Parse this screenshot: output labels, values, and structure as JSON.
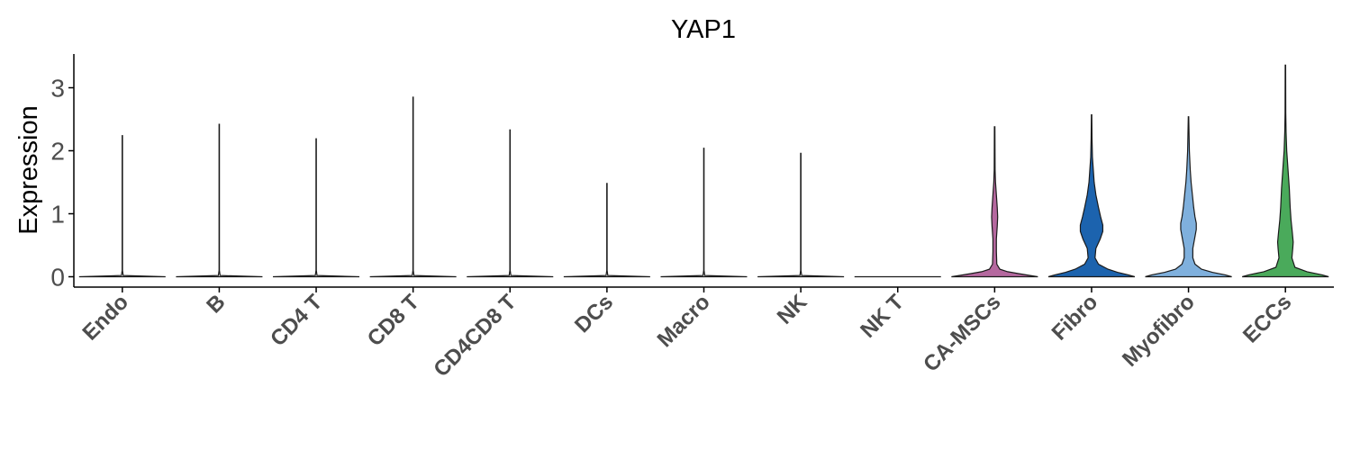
{
  "chart_data": {
    "type": "violin",
    "title": "YAP1",
    "xlabel": "",
    "ylabel": "Expression",
    "ylim": [
      -0.15,
      3.55
    ],
    "yticks": [
      0,
      1,
      2,
      3
    ],
    "grid": false,
    "legend": "none",
    "categories": [
      "Endo",
      "B",
      "CD4 T",
      "CD8 T",
      "CD4CD8 T",
      "DCs",
      "Macro",
      "NK",
      "NK T",
      "CA-MSCs",
      "Fibro",
      "Myofibro",
      "ECCs"
    ],
    "colors": [
      "#ffffff",
      "#ffffff",
      "#ffffff",
      "#ffffff",
      "#ffffff",
      "#ffffff",
      "#ffffff",
      "#ffffff",
      "#ffffff",
      "#b5689f",
      "#1c63ae",
      "#7fb0dd",
      "#4aaa5b"
    ],
    "series": [
      {
        "category": "Endo",
        "max": 2.24,
        "density": [
          [
            0,
            1
          ],
          [
            0.02,
            0.02
          ],
          [
            0.1,
            0.004
          ],
          [
            2.24,
            0.004
          ]
        ]
      },
      {
        "category": "B",
        "max": 2.42,
        "density": [
          [
            0,
            1
          ],
          [
            0.02,
            0.02
          ],
          [
            0.1,
            0.004
          ],
          [
            2.42,
            0.004
          ]
        ]
      },
      {
        "category": "CD4 T",
        "max": 2.19,
        "density": [
          [
            0,
            1
          ],
          [
            0.02,
            0.02
          ],
          [
            0.1,
            0.004
          ],
          [
            2.19,
            0.004
          ]
        ]
      },
      {
        "category": "CD8 T",
        "max": 2.85,
        "density": [
          [
            0,
            1
          ],
          [
            0.02,
            0.02
          ],
          [
            0.1,
            0.004
          ],
          [
            2.85,
            0.004
          ]
        ]
      },
      {
        "category": "CD4CD8 T",
        "max": 2.33,
        "density": [
          [
            0,
            1
          ],
          [
            0.02,
            0.02
          ],
          [
            0.1,
            0.004
          ],
          [
            2.33,
            0.004
          ]
        ]
      },
      {
        "category": "DCs",
        "max": 1.48,
        "density": [
          [
            0,
            1
          ],
          [
            0.02,
            0.02
          ],
          [
            0.1,
            0.004
          ],
          [
            1.48,
            0.004
          ]
        ]
      },
      {
        "category": "Macro",
        "max": 2.04,
        "density": [
          [
            0,
            1
          ],
          [
            0.02,
            0.02
          ],
          [
            0.1,
            0.004
          ],
          [
            2.04,
            0.004
          ]
        ]
      },
      {
        "category": "NK",
        "max": 1.96,
        "density": [
          [
            0,
            1
          ],
          [
            0.02,
            0.02
          ],
          [
            0.1,
            0.004
          ],
          [
            1.96,
            0.004
          ]
        ]
      },
      {
        "category": "NK T",
        "max": 0.0,
        "density": [
          [
            0,
            1
          ]
        ]
      },
      {
        "category": "CA-MSCs",
        "max": 2.38,
        "density": [
          [
            0,
            1
          ],
          [
            0.02,
            0.82
          ],
          [
            0.05,
            0.55
          ],
          [
            0.08,
            0.3
          ],
          [
            0.12,
            0.12
          ],
          [
            0.2,
            0.05
          ],
          [
            0.4,
            0.04
          ],
          [
            0.6,
            0.04
          ],
          [
            0.8,
            0.06
          ],
          [
            0.95,
            0.07
          ],
          [
            1.1,
            0.06
          ],
          [
            1.3,
            0.04
          ],
          [
            1.5,
            0.02
          ],
          [
            1.7,
            0.01
          ],
          [
            2.38,
            0.006
          ]
        ]
      },
      {
        "category": "Fibro",
        "max": 2.57,
        "density": [
          [
            0,
            1
          ],
          [
            0.03,
            0.85
          ],
          [
            0.07,
            0.6
          ],
          [
            0.12,
            0.38
          ],
          [
            0.2,
            0.16
          ],
          [
            0.3,
            0.08
          ],
          [
            0.45,
            0.1
          ],
          [
            0.6,
            0.2
          ],
          [
            0.72,
            0.26
          ],
          [
            0.82,
            0.26
          ],
          [
            0.95,
            0.21
          ],
          [
            1.1,
            0.16
          ],
          [
            1.3,
            0.1
          ],
          [
            1.5,
            0.06
          ],
          [
            1.7,
            0.04
          ],
          [
            1.9,
            0.02
          ],
          [
            2.2,
            0.01
          ],
          [
            2.57,
            0.005
          ]
        ]
      },
      {
        "category": "Myofibro",
        "max": 2.54,
        "density": [
          [
            0,
            1
          ],
          [
            0.03,
            0.85
          ],
          [
            0.07,
            0.55
          ],
          [
            0.12,
            0.3
          ],
          [
            0.2,
            0.15
          ],
          [
            0.3,
            0.1
          ],
          [
            0.45,
            0.1
          ],
          [
            0.6,
            0.14
          ],
          [
            0.75,
            0.18
          ],
          [
            0.85,
            0.18
          ],
          [
            0.95,
            0.15
          ],
          [
            1.1,
            0.12
          ],
          [
            1.3,
            0.09
          ],
          [
            1.5,
            0.06
          ],
          [
            1.7,
            0.04
          ],
          [
            2.0,
            0.02
          ],
          [
            2.54,
            0.005
          ]
        ]
      },
      {
        "category": "ECCs",
        "max": 3.36,
        "density": [
          [
            0,
            1
          ],
          [
            0.03,
            0.85
          ],
          [
            0.08,
            0.5
          ],
          [
            0.15,
            0.22
          ],
          [
            0.3,
            0.15
          ],
          [
            0.45,
            0.17
          ],
          [
            0.55,
            0.18
          ],
          [
            0.7,
            0.16
          ],
          [
            0.9,
            0.13
          ],
          [
            1.1,
            0.11
          ],
          [
            1.4,
            0.09
          ],
          [
            1.7,
            0.06
          ],
          [
            2.0,
            0.03
          ],
          [
            2.3,
            0.015
          ],
          [
            2.6,
            0.008
          ],
          [
            3.36,
            0.005
          ]
        ]
      }
    ]
  }
}
